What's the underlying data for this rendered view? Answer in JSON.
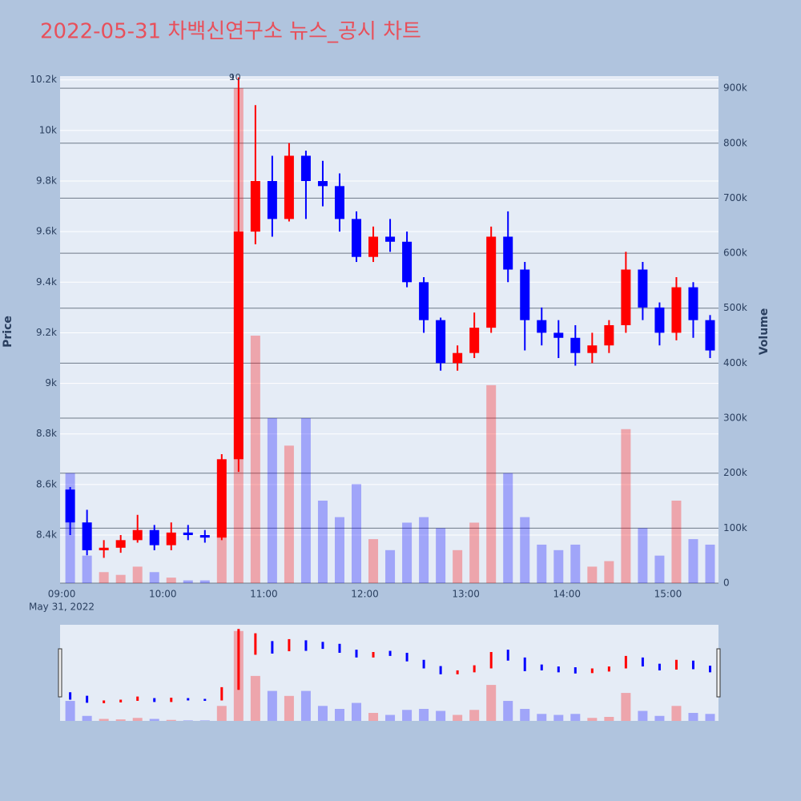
{
  "chart_data": {
    "type": "candlestick",
    "title": "2022-05-31 차백신연구소 뉴스_공시 차트",
    "y_label": "Price",
    "y2_label": "Volume",
    "x_date_label": "May 31, 2022",
    "increasing_color": "#ff0000",
    "decreasing_color": "#0000ff",
    "x": [
      "09:00",
      "09:10",
      "09:20",
      "09:30",
      "09:40",
      "09:50",
      "10:00",
      "10:10",
      "10:20",
      "10:30",
      "10:40",
      "10:50",
      "11:00",
      "11:10",
      "11:20",
      "11:30",
      "11:40",
      "11:50",
      "12:00",
      "12:10",
      "12:20",
      "12:30",
      "12:40",
      "12:50",
      "13:00",
      "13:10",
      "13:20",
      "13:30",
      "13:40",
      "13:50",
      "14:00",
      "14:10",
      "14:20",
      "14:30",
      "14:40",
      "14:50",
      "15:00",
      "15:10",
      "15:20"
    ],
    "open": [
      8580,
      8450,
      8340,
      8350,
      8380,
      8420,
      8360,
      8410,
      8400,
      8390,
      8700,
      9600,
      9800,
      9650,
      9900,
      9800,
      9780,
      9650,
      9500,
      9580,
      9560,
      9400,
      9250,
      9080,
      9120,
      9220,
      9580,
      9450,
      9250,
      9200,
      9180,
      9120,
      9150,
      9230,
      9450,
      9300,
      9200,
      9380,
      9250
    ],
    "high": [
      8590,
      8500,
      8380,
      8400,
      8480,
      8440,
      8450,
      8440,
      8420,
      8720,
      10210,
      10100,
      9900,
      9950,
      9920,
      9880,
      9830,
      9680,
      9620,
      9650,
      9600,
      9420,
      9260,
      9150,
      9280,
      9620,
      9680,
      9480,
      9300,
      9250,
      9230,
      9200,
      9250,
      9520,
      9480,
      9320,
      9420,
      9400,
      9270
    ],
    "low": [
      8400,
      8320,
      8310,
      8330,
      8370,
      8340,
      8340,
      8380,
      8370,
      8380,
      8650,
      9550,
      9580,
      9640,
      9650,
      9700,
      9600,
      9480,
      9480,
      9520,
      9380,
      9200,
      9050,
      9050,
      9100,
      9200,
      9400,
      9130,
      9150,
      9100,
      9070,
      9080,
      9120,
      9200,
      9250,
      9150,
      9170,
      9180,
      9100
    ],
    "close": [
      8450,
      8340,
      8350,
      8380,
      8420,
      8360,
      8410,
      8400,
      8390,
      8700,
      9600,
      9800,
      9650,
      9900,
      9800,
      9780,
      9650,
      9500,
      9580,
      9560,
      9400,
      9250,
      9080,
      9120,
      9220,
      9580,
      9450,
      9250,
      9200,
      9180,
      9120,
      9150,
      9230,
      9450,
      9300,
      9200,
      9380,
      9250,
      9130
    ],
    "volume": [
      200000,
      50000,
      20000,
      15000,
      30000,
      20000,
      10000,
      5000,
      5000,
      150000,
      900000,
      450000,
      300000,
      250000,
      300000,
      150000,
      120000,
      180000,
      80000,
      60000,
      110000,
      120000,
      100000,
      60000,
      110000,
      360000,
      200000,
      120000,
      70000,
      60000,
      70000,
      30000,
      40000,
      280000,
      100000,
      50000,
      150000,
      80000,
      70000
    ],
    "xlim": [
      "08:59",
      "15:30"
    ],
    "xticks": [
      "09:00",
      "10:00",
      "11:00",
      "12:00",
      "13:00",
      "14:00",
      "15:00"
    ],
    "ylim": [
      8210,
      10215
    ],
    "yticks": [
      {
        "value": 8400,
        "label": "8.4k"
      },
      {
        "value": 8600,
        "label": "8.6k"
      },
      {
        "value": 8800,
        "label": "8.8k"
      },
      {
        "value": 9000,
        "label": "9k"
      },
      {
        "value": 9200,
        "label": "9.2k"
      },
      {
        "value": 9400,
        "label": "9.4k"
      },
      {
        "value": 9600,
        "label": "9.6k"
      },
      {
        "value": 9800,
        "label": "9.8k"
      },
      {
        "value": 10000,
        "label": "10k"
      },
      {
        "value": 10200,
        "label": "10.2k"
      }
    ],
    "y2lim": [
      0,
      922000
    ],
    "y2ticks": [
      0,
      {
        "value": 100000,
        "label": "100k"
      },
      {
        "value": 200000,
        "label": "200k"
      },
      {
        "value": 300000,
        "label": "300k"
      },
      {
        "value": 400000,
        "label": "400k"
      },
      {
        "value": 500000,
        "label": "500k"
      },
      {
        "value": 600000,
        "label": "600k"
      },
      {
        "value": 700000,
        "label": "700k"
      },
      {
        "value": 800000,
        "label": "800k"
      },
      {
        "value": 900000,
        "label": "900k"
      }
    ],
    "annotations": [
      {
        "x": "10:41",
        "text": "9"
      },
      {
        "x": "10:43",
        "text": "10"
      }
    ],
    "grid": true
  }
}
